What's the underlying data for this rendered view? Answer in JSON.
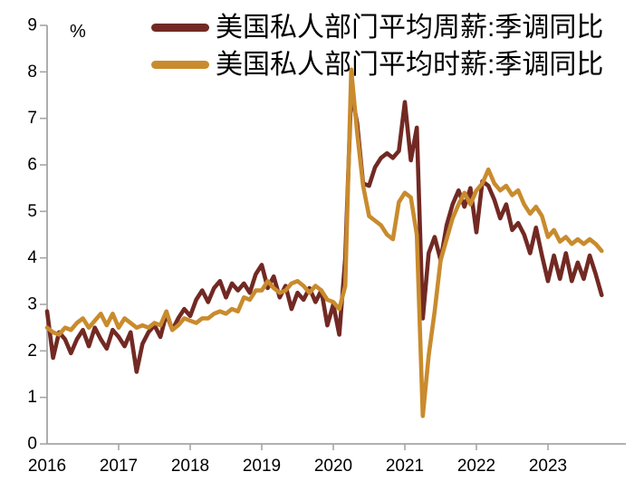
{
  "chart": {
    "unit_label": "%",
    "colors": {
      "weekly_series": "#722923",
      "hourly_series": "#C98B2D",
      "axis": "#A6A6A6",
      "text": "#000000"
    }
  },
  "chart_data": {
    "type": "line",
    "title": "",
    "xlabel": "",
    "ylabel": "%",
    "ylim": [
      0,
      9
    ],
    "y_ticks": [
      "0",
      "1",
      "2",
      "3",
      "4",
      "5",
      "6",
      "7",
      "8",
      "9"
    ],
    "x_tick_labels": [
      "2016",
      "2017",
      "2018",
      "2019",
      "2020",
      "2021",
      "2022",
      "2023"
    ],
    "x_unit": "month",
    "x_range": [
      "2016-01",
      "2023-10"
    ],
    "grid": false,
    "legend_position": "top-center",
    "series": [
      {
        "name": "美国私人部门平均周薪:季调同比",
        "color": "#722923",
        "values": [
          2.85,
          1.85,
          2.4,
          2.25,
          1.95,
          2.25,
          2.45,
          2.1,
          2.5,
          2.25,
          2.05,
          2.45,
          2.3,
          2.1,
          2.4,
          1.55,
          2.15,
          2.4,
          2.55,
          2.3,
          2.8,
          2.45,
          2.7,
          2.9,
          2.75,
          3.1,
          3.3,
          3.05,
          3.35,
          3.5,
          3.15,
          3.45,
          3.3,
          3.45,
          3.25,
          3.65,
          3.85,
          3.35,
          3.6,
          3.15,
          3.4,
          2.9,
          3.25,
          3.1,
          3.35,
          3.05,
          3.3,
          2.55,
          3.0,
          2.35,
          4.0,
          7.6,
          6.9,
          5.6,
          5.55,
          5.95,
          6.15,
          6.25,
          6.15,
          6.3,
          7.35,
          6.1,
          6.8,
          2.7,
          4.1,
          4.45,
          3.95,
          4.7,
          5.15,
          5.45,
          5.1,
          5.5,
          4.55,
          5.65,
          5.55,
          5.25,
          4.85,
          5.15,
          4.6,
          4.75,
          4.5,
          4.1,
          4.65,
          4.05,
          3.5,
          4.05,
          3.55,
          4.1,
          3.5,
          3.9,
          3.55,
          4.05,
          3.65,
          3.2
        ]
      },
      {
        "name": "美国私人部门平均时薪:季调同比",
        "color": "#C98B2D",
        "values": [
          2.5,
          2.4,
          2.35,
          2.5,
          2.45,
          2.6,
          2.7,
          2.5,
          2.65,
          2.8,
          2.55,
          2.8,
          2.5,
          2.7,
          2.6,
          2.5,
          2.55,
          2.5,
          2.6,
          2.55,
          2.85,
          2.45,
          2.55,
          2.7,
          2.65,
          2.6,
          2.7,
          2.7,
          2.8,
          2.85,
          2.8,
          2.9,
          2.85,
          3.15,
          3.1,
          3.3,
          3.3,
          3.5,
          3.35,
          3.25,
          3.3,
          3.45,
          3.5,
          3.4,
          3.25,
          3.4,
          3.3,
          3.1,
          3.05,
          2.9,
          3.4,
          8.05,
          6.7,
          5.55,
          4.9,
          4.8,
          4.7,
          4.5,
          4.4,
          5.2,
          5.4,
          5.3,
          4.5,
          0.6,
          1.9,
          2.85,
          3.95,
          4.4,
          4.85,
          5.15,
          5.4,
          5.15,
          5.45,
          5.6,
          5.9,
          5.6,
          5.45,
          5.55,
          5.35,
          5.45,
          5.15,
          4.95,
          5.1,
          4.9,
          4.45,
          4.6,
          4.35,
          4.45,
          4.3,
          4.4,
          4.3,
          4.4,
          4.3,
          4.15
        ]
      }
    ]
  }
}
